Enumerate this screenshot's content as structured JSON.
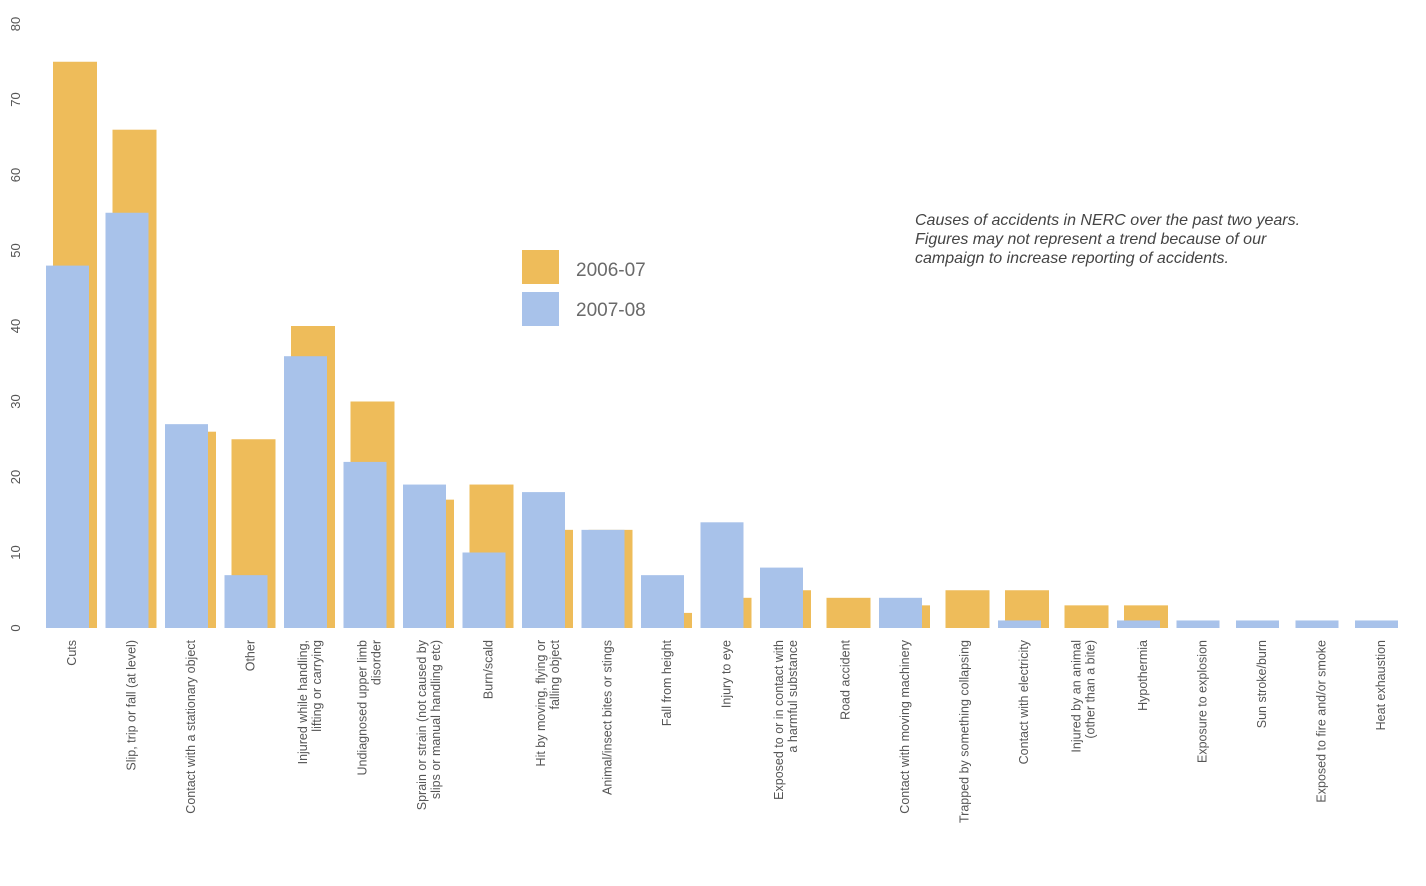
{
  "chart_data": {
    "type": "bar",
    "note": "Causes of accidents in NERC over the past two years. Figures may not represent a trend because of our campaign to increase reporting of accidents.",
    "ylim": [
      0,
      80
    ],
    "yticks": [
      0,
      10,
      20,
      30,
      40,
      50,
      60,
      70,
      80
    ],
    "grid": false,
    "legend_position": "center",
    "colors": {
      "2006-07": "#eebc5a",
      "2007-08": "#a8c2ea"
    },
    "categories": [
      [
        "Cuts"
      ],
      [
        "Slip, trip or fall (at level)"
      ],
      [
        "Contact with a stationary object"
      ],
      [
        "Other"
      ],
      [
        "Injured while handling,",
        "lifting or carrying"
      ],
      [
        "Undiagnosed upper limb",
        "disorder"
      ],
      [
        "Sprain or strain (not caused by",
        "slips or manual handling etc)"
      ],
      [
        "Burn/scald"
      ],
      [
        "Hit by moving, flying or",
        "falling object"
      ],
      [
        "Animal/insect bites or stings"
      ],
      [
        "Fall from height"
      ],
      [
        "Injury to eye"
      ],
      [
        "Exposed to or in contact with",
        "a harmful substance"
      ],
      [
        "Road accident"
      ],
      [
        "Contact with moving machinery"
      ],
      [
        "Trapped by something collapsing"
      ],
      [
        "Contact with electricity"
      ],
      [
        "Injured by an animal",
        "(other than a bite)"
      ],
      [
        "Hypothermia"
      ],
      [
        "Exposure to explosion"
      ],
      [
        "Sun stroke/burn"
      ],
      [
        "Exposed to fire and/or smoke"
      ],
      [
        "Heat exhaustion"
      ]
    ],
    "series": [
      {
        "name": "2006-07",
        "values": [
          75,
          66,
          26,
          25,
          40,
          30,
          17,
          19,
          13,
          13,
          2,
          4,
          5,
          4,
          3,
          5,
          5,
          3,
          3,
          0,
          0,
          0,
          0
        ]
      },
      {
        "name": "2007-08",
        "values": [
          48,
          55,
          27,
          7,
          36,
          22,
          19,
          10,
          18,
          13,
          7,
          14,
          8,
          0,
          4,
          0,
          1,
          0,
          1,
          1,
          1,
          1,
          1
        ]
      }
    ]
  }
}
